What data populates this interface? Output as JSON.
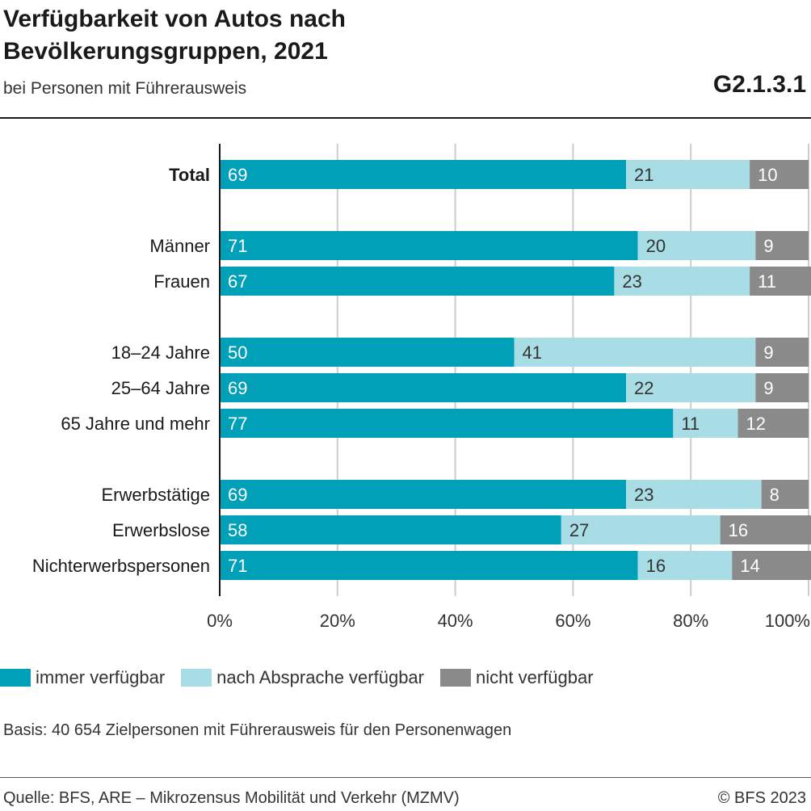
{
  "header": {
    "title": "Verfügbarkeit von Autos nach Bevölkerungsgruppen, 2021",
    "subtitle": "bei Personen mit Führerausweis",
    "code": "G2.1.3.1"
  },
  "colors": {
    "immer": "#00a0b8",
    "absprache": "#a8dde5",
    "nicht": "#8a8a8a",
    "grid": "#cccccc",
    "axis": "#1a1a1a"
  },
  "chart_data": {
    "type": "bar",
    "orientation": "horizontal",
    "stacked": true,
    "categories": [
      "Total",
      "Männer",
      "Frauen",
      "18–24 Jahre",
      "25–64 Jahre",
      "65 Jahre und mehr",
      "Erwerbstätige",
      "Erwerbslose",
      "Nichterwerbspersonen"
    ],
    "groups": [
      [
        0
      ],
      [
        1,
        2
      ],
      [
        3,
        4,
        5
      ],
      [
        6,
        7,
        8
      ]
    ],
    "bold_categories": [
      "Total"
    ],
    "series": [
      {
        "name": "immer verfügbar",
        "values": [
          69,
          71,
          67,
          50,
          69,
          77,
          69,
          58,
          71
        ],
        "label_color": "#ffffff"
      },
      {
        "name": "nach Absprache verfügbar",
        "values": [
          21,
          20,
          23,
          41,
          22,
          11,
          23,
          27,
          16
        ],
        "label_color": "#333333"
      },
      {
        "name": "nicht verfügbar",
        "values": [
          10,
          9,
          11,
          9,
          9,
          12,
          8,
          16,
          14
        ],
        "label_color": "#ffffff"
      }
    ],
    "xlim": [
      0,
      100
    ],
    "xticks": [
      "0%",
      "20%",
      "40%",
      "60%",
      "80%",
      "100%"
    ],
    "grid": true,
    "legend_position": "bottom"
  },
  "legend": {
    "items": [
      {
        "label": "immer verfügbar"
      },
      {
        "label": "nach Absprache verfügbar"
      },
      {
        "label": "nicht verfügbar"
      }
    ]
  },
  "note": "Basis: 40 654 Zielpersonen mit Führerausweis für den Personenwagen",
  "footer": {
    "source": "Quelle: BFS, ARE – Mikrozensus Mobilität und Verkehr (MZMV)",
    "copyright": "© BFS 2023"
  }
}
